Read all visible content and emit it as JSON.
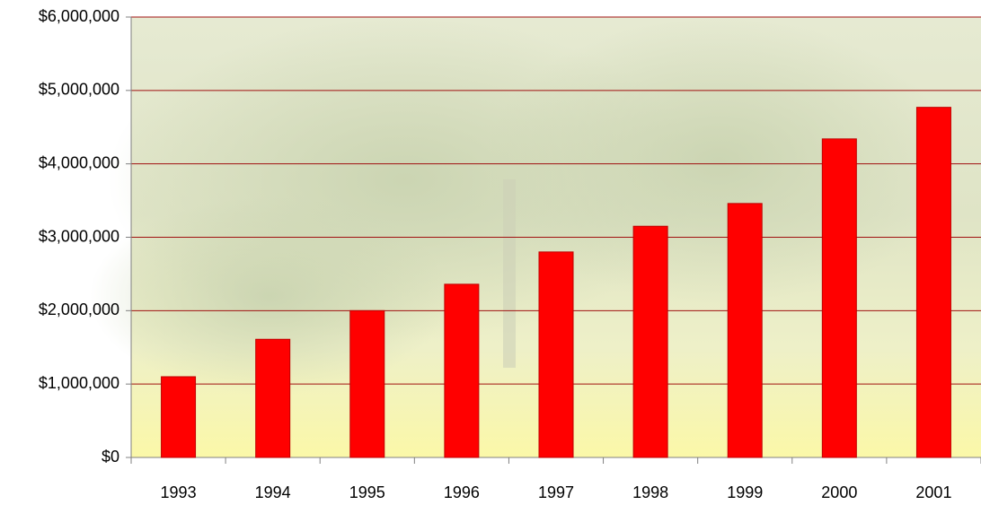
{
  "chart_data": {
    "type": "bar",
    "categories": [
      "1993",
      "1994",
      "1995",
      "1996",
      "1997",
      "1998",
      "1999",
      "2000",
      "2001"
    ],
    "values": [
      1100000,
      1610000,
      2000000,
      2360000,
      2800000,
      3150000,
      3460000,
      4340000,
      4770000
    ],
    "color": "#ff0000",
    "ylim": [
      0,
      6000000
    ],
    "yticks": [
      {
        "value": 0,
        "label": "$0"
      },
      {
        "value": 1000000,
        "label": "$1,000,000"
      },
      {
        "value": 2000000,
        "label": "$2,000,000"
      },
      {
        "value": 3000000,
        "label": "$3,000,000"
      },
      {
        "value": 4000000,
        "label": "$4,000,000"
      },
      {
        "value": 5000000,
        "label": "$5,000,000"
      },
      {
        "value": 6000000,
        "label": "$6,000,000"
      }
    ],
    "grid": true
  }
}
